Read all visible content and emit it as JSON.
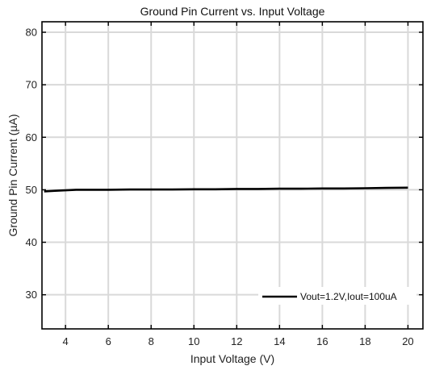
{
  "chart_data": {
    "type": "line",
    "title": "Ground Pin Current vs. Input Voltage",
    "xlabel": "Input Voltage (V)",
    "ylabel": "Ground Pin Current (µA)",
    "xlim": [
      2.9,
      20.7
    ],
    "ylim": [
      23.5,
      82
    ],
    "xticks": [
      4,
      6,
      8,
      10,
      12,
      14,
      16,
      18,
      20
    ],
    "yticks": [
      30,
      40,
      50,
      60,
      70,
      80
    ],
    "grid": true,
    "legend_position": "bottom-right",
    "series": [
      {
        "name": "Vout=1.2V,Iout=100uA",
        "color": "#000000",
        "x": [
          3,
          3.5,
          4,
          4.5,
          5,
          6,
          7,
          8,
          9,
          10,
          11,
          12,
          13,
          14,
          15,
          16,
          17,
          18,
          19,
          20
        ],
        "y": [
          49.7,
          49.8,
          49.9,
          50.0,
          50.0,
          50.0,
          50.05,
          50.05,
          50.05,
          50.1,
          50.1,
          50.15,
          50.15,
          50.2,
          50.2,
          50.25,
          50.25,
          50.3,
          50.35,
          50.4
        ]
      }
    ]
  }
}
